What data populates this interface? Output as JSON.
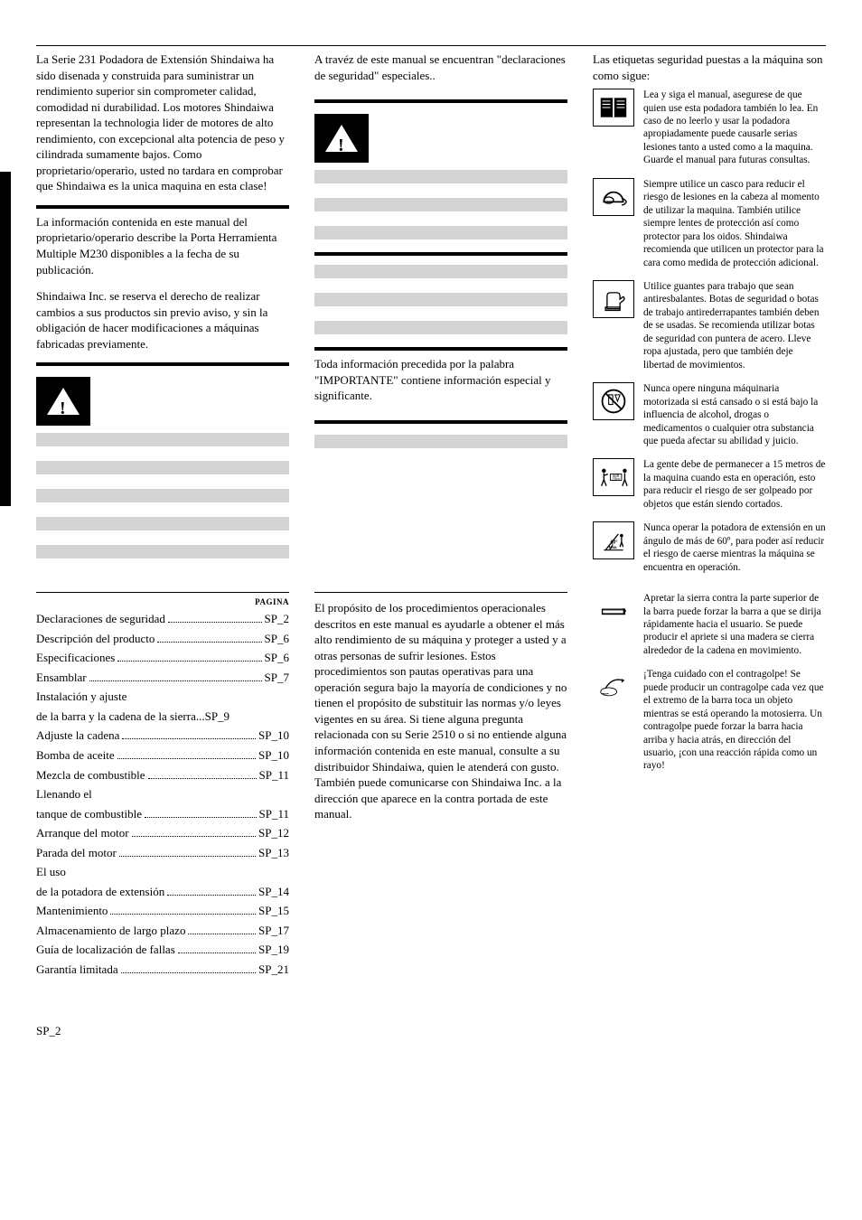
{
  "intro": {
    "para1": "La Serie 231 Podadora de Extensión Shindaiwa ha sido disenada y construida para suministrar un rendimiento superior sin comprometer calidad, comodidad ni durabilidad.  Los motores Shindaiwa representan la technologia lider de motores de alto rendimiento, con excepcional alta potencia de peso y cilindrada sumamente bajos.  Como proprietario/operario, usted no tardara en comprobar que Shindaiwa es la unica maquina en esta clase!",
    "para2": "La información contenida en este manual del proprietario/operario describe la Porta Herramienta Multiple M230 disponibles a la fecha de su publicación.",
    "para3": "Shindaiwa Inc. se reserva el derecho de realizar cambios a sus productos sin previo aviso, y sin la obligación de hacer modificaciones a máquinas fabricadas previamente."
  },
  "col2": {
    "declaraciones": "A travéz de este manual se encuentran \"declaraciones de seguridad\" especiales..",
    "importante": "Toda información precedida por la palabra \"IMPORTANTE\" contiene información especial y significante."
  },
  "col3_header": "Las etiquetas seguridad puestas a la máquina son como sigue:",
  "safety": [
    {
      "icon": "manual",
      "text": "Lea y siga el manual, asegurese de que quien use esta podadora también lo lea. En caso de no leerlo y usar la podadora apropiadamente puede causarle serias lesiones tanto a usted como a la maquina. Guarde el manual para futuras consultas."
    },
    {
      "icon": "helmet",
      "text": "Siempre utilice un casco para reducir el riesgo de lesiones en la cabeza al momento de utilizar la maquina.  También utilice siempre lentes de protección así como protector para los oidos. Shindaiwa recomienda que utilicen un protector para la cara como medida de protección adicional."
    },
    {
      "icon": "glove",
      "text": "Utilice guantes para trabajo que sean antiresbalantes. Botas de seguridad o botas de trabajo antirederrapantes también deben de se usadas. Se recomienda utilizar botas de seguridad con puntera de acero. Lleve ropa ajustada, pero que también deje libertad de movimientos."
    },
    {
      "icon": "no-alcohol",
      "text": "Nunca opere ninguna máquinaria motorizada si está cansado o si está bajo la influencia de alcohol, drogas o medicamentos o cualquier otra substancia que pueda afectar su abilidad y juicio."
    },
    {
      "icon": "distance",
      "text": "La gente debe de permanecer a 15 metros de la maquina cuando esta en operación, esto para reducir el riesgo de ser golpeado por objetos que están siendo cortados."
    },
    {
      "icon": "angle",
      "text": "Nunca operar la potadora de extensión en un ángulo de más de 60º, para poder así reducir el riesgo de caerse mientras la máquina se encuentra en operación."
    },
    {
      "icon": "press",
      "text": "Apretar la sierra contra la parte superior de la barra puede forzar la barra a que se dirija rápidamente hacia el usuario. Se puede producir el apriete si una madera se cierra alrededor de la cadena en movimiento."
    },
    {
      "icon": "kickback",
      "text": "¡Tenga cuidado con el contragolpe! Se puede producir un contragolpe cada vez que el extremo de la barra toca un objeto mientras se está operando la motosierra. Un contragolpe puede forzar la barra hacia arriba y hacia atrás, en dirección del usuario, ¡con una reacción rápida como un rayo!"
    }
  ],
  "toc": {
    "heading": "PAGINA",
    "items": [
      {
        "label": "Declaraciones de seguridad",
        "page": "SP_2",
        "lead": true
      },
      {
        "label": "Descripción del producto",
        "page": "SP_6",
        "lead": true
      },
      {
        "label": "Especificaciones",
        "page": "SP_6",
        "lead": true
      },
      {
        "label": "Ensamblar",
        "page": "SP_7",
        "lead": true
      },
      {
        "label": "Instalación y ajuste",
        "page": "",
        "lead": false
      },
      {
        "label": "de la barra y la cadena de la sierra...",
        "page": "SP_9",
        "lead": false,
        "inline": true
      },
      {
        "label": "Adjuste la cadena",
        "page": "SP_10",
        "lead": true
      },
      {
        "label": "Bomba de aceite",
        "page": "SP_10",
        "lead": true
      },
      {
        "label": "Mezcla de combustible",
        "page": "SP_11",
        "lead": true
      },
      {
        "label": "Llenando el",
        "page": "",
        "lead": false
      },
      {
        "label": "tanque de combustible",
        "page": "SP_11",
        "lead": true
      },
      {
        "label": "Arranque del motor",
        "page": "SP_12",
        "lead": true
      },
      {
        "label": "Parada del motor",
        "page": "SP_13",
        "lead": true
      },
      {
        "label": "El uso",
        "page": "",
        "lead": false
      },
      {
        "label": "de la potadora de extensión",
        "page": "SP_14",
        "lead": true
      },
      {
        "label": "Mantenimiento",
        "page": "SP_15",
        "lead": true
      },
      {
        "label": "Almacenamiento de largo plazo",
        "page": "SP_17",
        "lead": true
      },
      {
        "label": "Guía de localización de fallas",
        "page": "SP_19",
        "lead": true
      },
      {
        "label": "Garantía limitada",
        "page": "SP_21",
        "lead": true
      }
    ]
  },
  "procedures": "El propósito de los procedimientos operacionales descritos en este manual es ayudarle a obtener el más alto rendimiento de su máquina y proteger a usted y a otras personas de  sufrir lesiones. Estos procedimientos son pautas operativas para una operación segura bajo la mayoría de condiciones y no tienen el propósito de substituir las normas y/o leyes vigentes en su área. Si tiene alguna pregunta relacionada con su Serie 2510 o si no entiende alguna información contenida en este manual, consulte a su distribuidor Shindaiwa, quien le atenderá con gusto.  También puede comunicarse con Shindaiwa Inc. a la dirección que aparece en la contra portada de este manual.",
  "footer": "SP_2"
}
